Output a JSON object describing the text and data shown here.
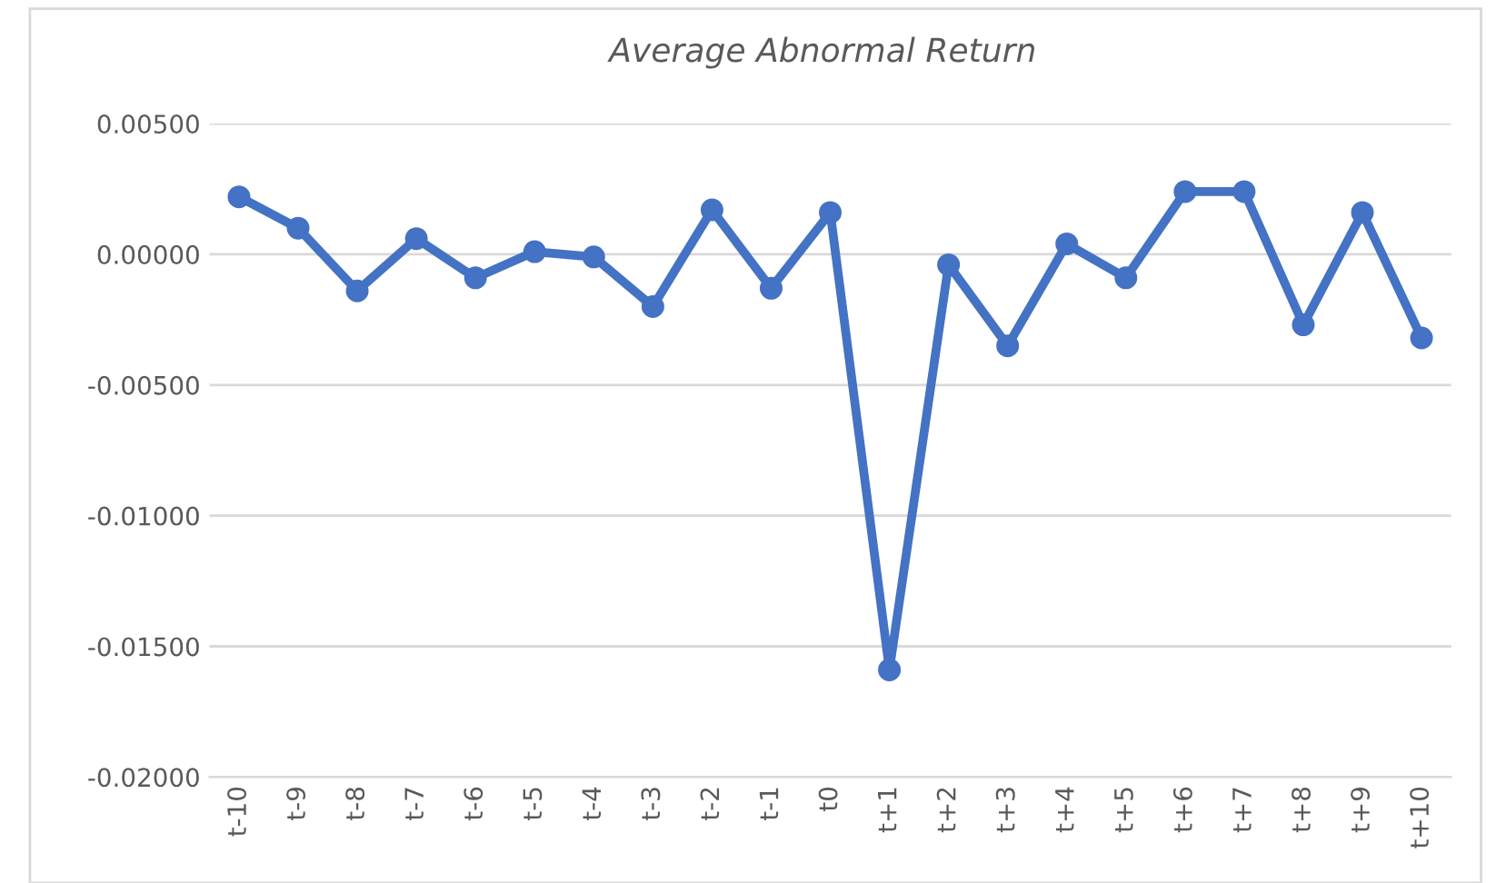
{
  "chart_data": {
    "type": "line",
    "title": "Average Abnormal Return",
    "categories": [
      "t-10",
      "t-9",
      "t-8",
      "t-7",
      "t-6",
      "t-5",
      "t-4",
      "t-3",
      "t-2",
      "t-1",
      "t0",
      "t+1",
      "t+2",
      "t+3",
      "t+4",
      "t+5",
      "t+6",
      "t+7",
      "t+8",
      "t+9",
      "t+10"
    ],
    "series": [
      {
        "color": "#4472c4",
        "values": [
          0.0022,
          0.001,
          -0.0014,
          0.0006,
          -0.0009,
          0.0001,
          -0.0001,
          -0.002,
          0.0017,
          -0.0013,
          0.0016,
          -0.0159,
          -0.0004,
          -0.0035,
          0.0004,
          -0.0009,
          0.0024,
          0.0024,
          -0.0027,
          0.0016,
          -0.0032
        ]
      }
    ],
    "ylim": [
      -0.02,
      0.005
    ],
    "yticks": [
      {
        "value": 0.005,
        "label": "0.00500"
      },
      {
        "value": 0,
        "label": "0.00000"
      },
      {
        "value": -0.005,
        "label": "-0.00500"
      },
      {
        "value": -0.01,
        "label": "-0.01000"
      },
      {
        "value": -0.015,
        "label": "-0.01500"
      },
      {
        "value": -0.02,
        "label": "-0.02000"
      }
    ],
    "grid": "y",
    "marker": "circle",
    "line_style": "solid"
  }
}
